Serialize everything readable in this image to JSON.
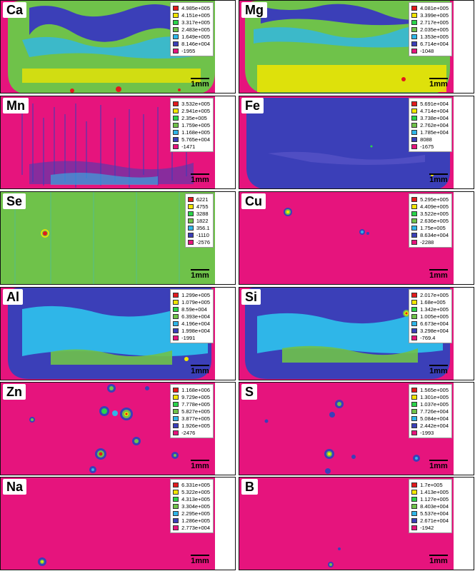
{
  "scale_label": "1mm",
  "colors": {
    "background": "#e6147d",
    "levels": [
      "#e31a1c",
      "#f2e600",
      "#2ad44a",
      "#6fc24a",
      "#2fb6e8",
      "#3b3fb8",
      "#e6147d"
    ]
  },
  "panels": [
    {
      "element": "Ca",
      "legend": [
        "4.985e+005",
        "4.151e+005",
        "3.317e+005",
        "2.483e+005",
        "1.649e+005",
        "8.146e+004",
        "-1955"
      ]
    },
    {
      "element": "Mg",
      "legend": [
        "4.081e+005",
        "3.399e+005",
        "2.717e+005",
        "2.035e+005",
        "1.353e+005",
        "6.714e+004",
        "-1048"
      ]
    },
    {
      "element": "Mn",
      "legend": [
        "3.532e+005",
        "2.941e+005",
        "2.35e+005",
        "1.759e+005",
        "1.168e+005",
        "5.765e+004",
        "-1471"
      ]
    },
    {
      "element": "Fe",
      "legend": [
        "5.691e+004",
        "4.714e+004",
        "3.738e+004",
        "2.762e+004",
        "1.785e+004",
        "8088",
        "-1675"
      ]
    },
    {
      "element": "Se",
      "legend": [
        "6221",
        "4755",
        "3288",
        "1822",
        "356.1",
        "-1110",
        "-2576"
      ]
    },
    {
      "element": "Cu",
      "legend": [
        "5.295e+005",
        "4.409e+005",
        "3.522e+005",
        "2.636e+005",
        "1.75e+005",
        "8.634e+004",
        "-2288"
      ]
    },
    {
      "element": "Al",
      "legend": [
        "1.299e+005",
        "1.079e+005",
        "8.59e+004",
        "6.393e+004",
        "4.196e+004",
        "1.998e+004",
        "-1991"
      ]
    },
    {
      "element": "Si",
      "legend": [
        "2.017e+005",
        "1.68e+005",
        "1.342e+005",
        "1.005e+005",
        "6.673e+004",
        "3.298e+004",
        "-769.4"
      ]
    },
    {
      "element": "Zn",
      "legend": [
        "1.168e+006",
        "9.729e+005",
        "7.778e+005",
        "5.827e+005",
        "3.877e+005",
        "1.926e+005",
        "-2476"
      ]
    },
    {
      "element": "S",
      "legend": [
        "1.565e+005",
        "1.301e+005",
        "1.037e+005",
        "7.726e+004",
        "5.084e+004",
        "2.442e+004",
        "-1993"
      ]
    },
    {
      "element": "Na",
      "legend": [
        "6.331e+005",
        "5.322e+005",
        "4.313e+005",
        "3.304e+005",
        "2.295e+005",
        "1.286e+005",
        "2.773e+004"
      ]
    },
    {
      "element": "B",
      "legend": [
        "1.7e+005",
        "1.413e+005",
        "1.127e+005",
        "8.403e+004",
        "5.537e+004",
        "2.671e+004",
        "-1942"
      ]
    }
  ]
}
